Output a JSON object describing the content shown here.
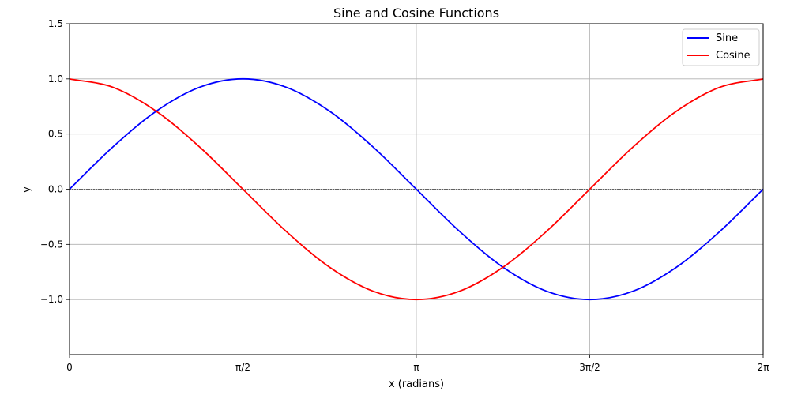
{
  "chart_data": {
    "type": "line",
    "title": "Sine and Cosine Functions",
    "xlabel": "x (radians)",
    "ylabel": "y",
    "xlim": [
      0,
      6.283185307179586
    ],
    "ylim": [
      -1.5,
      1.5
    ],
    "grid": true,
    "legend_position": "top-right",
    "x_ticks": [
      {
        "value": 0,
        "label": "0"
      },
      {
        "value": 1.5707963267948966,
        "label": "π/2"
      },
      {
        "value": 3.141592653589793,
        "label": "π"
      },
      {
        "value": 4.71238898038469,
        "label": "3π/2"
      },
      {
        "value": 6.283185307179586,
        "label": "2π"
      }
    ],
    "y_ticks": [
      {
        "value": 1.5,
        "label": "1.5"
      },
      {
        "value": 1.0,
        "label": "1.0"
      },
      {
        "value": 0.5,
        "label": "0.5"
      },
      {
        "value": 0.0,
        "label": "0.0"
      },
      {
        "value": -0.5,
        "label": "−0.5"
      },
      {
        "value": -1.0,
        "label": "−1.0"
      }
    ],
    "zero_line": {
      "y": 0,
      "color": "#000000",
      "style": "dashed"
    },
    "x": [
      0,
      0.3927,
      0.7854,
      1.1781,
      1.5708,
      1.9635,
      2.3562,
      2.7489,
      3.1416,
      3.5343,
      3.927,
      4.3197,
      4.7124,
      5.1051,
      5.4978,
      5.8905,
      6.2832
    ],
    "series": [
      {
        "name": "Sine",
        "color": "#0000ff",
        "values": [
          0,
          0.383,
          0.707,
          0.924,
          1.0,
          0.924,
          0.707,
          0.383,
          0,
          -0.383,
          -0.707,
          -0.924,
          -1.0,
          -0.924,
          -0.707,
          -0.383,
          0
        ]
      },
      {
        "name": "Cosine",
        "color": "#ff0000",
        "values": [
          1.0,
          0.924,
          0.707,
          0.383,
          0,
          -0.383,
          -0.707,
          -0.924,
          -1.0,
          -0.924,
          -0.707,
          -0.383,
          0,
          0.383,
          0.707,
          0.924,
          1.0
        ]
      }
    ]
  }
}
